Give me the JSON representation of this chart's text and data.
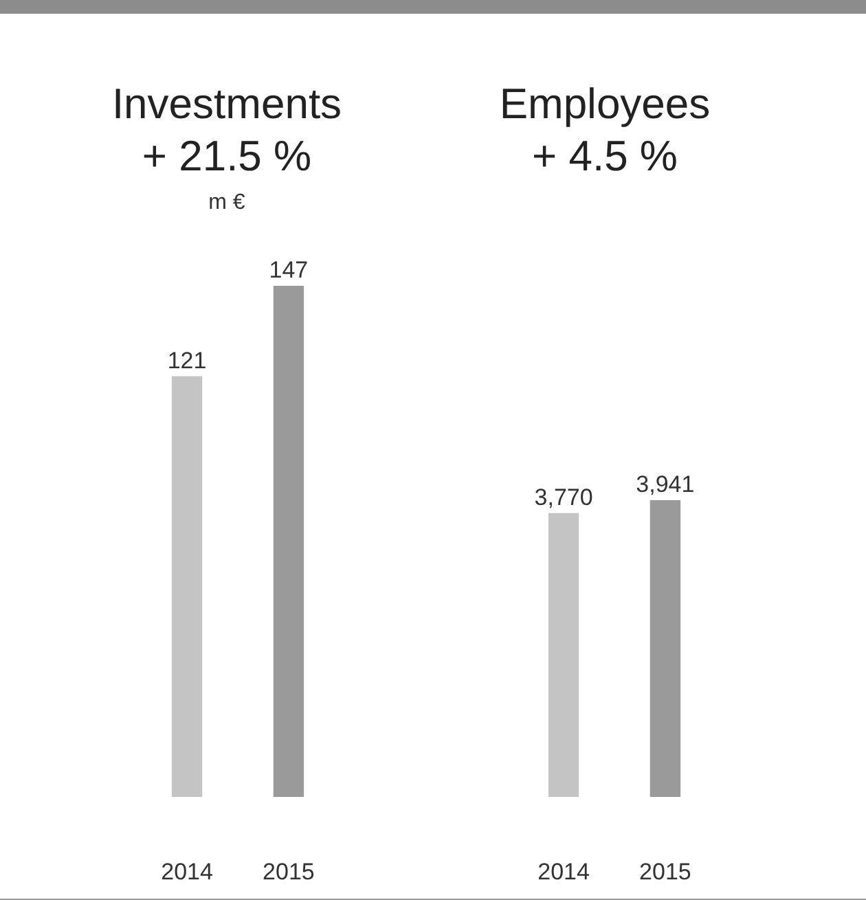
{
  "chart_data": [
    {
      "type": "bar",
      "title": "Investments",
      "subtitle": "+ 21.5 %",
      "ylabel": "m €",
      "categories": [
        "2014",
        "2015"
      ],
      "values": [
        121,
        147
      ],
      "colors": [
        "#c4c4c4",
        "#9a9a9a"
      ],
      "data_labels": true
    },
    {
      "type": "bar",
      "title": "Employees",
      "subtitle": "+ 4.5 %",
      "categories": [
        "2014",
        "2015"
      ],
      "values": [
        3770,
        3941
      ],
      "value_labels": [
        "3,770",
        "3,941"
      ],
      "colors": [
        "#c4c4c4",
        "#9a9a9a"
      ]
    }
  ]
}
